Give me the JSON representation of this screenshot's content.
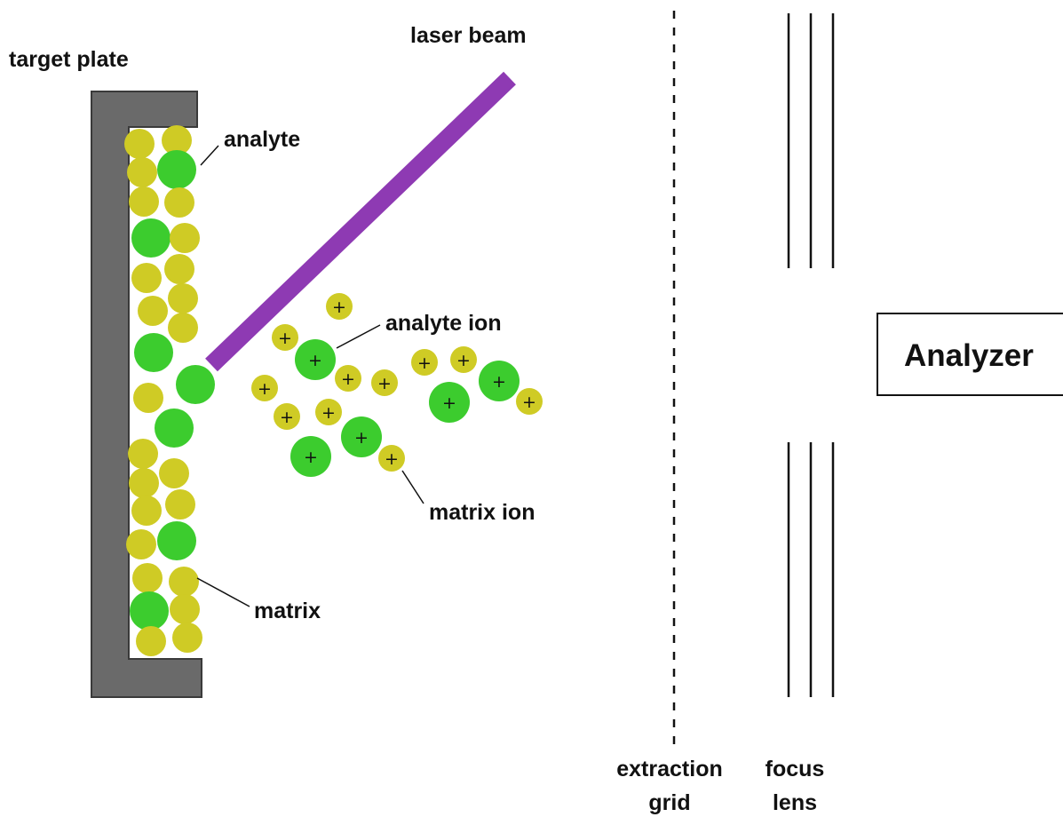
{
  "labels": {
    "target_plate": "target plate",
    "laser_beam": "laser beam",
    "analyte": "analyte",
    "analyte_ion": "analyte ion",
    "matrix_ion": "matrix ion",
    "matrix": "matrix",
    "extraction_grid_line1": "extraction",
    "extraction_grid_line2": "grid",
    "focus_lens_line1": "focus",
    "focus_lens_line2": "lens",
    "analyzer": "Analyzer",
    "ion_charge": "+"
  },
  "colors": {
    "plate": "#6a6a6a",
    "laser": "#8e3ab3",
    "analyte": "#3ccc2e",
    "matrix": "#cfcb25",
    "ink": "#111111"
  }
}
